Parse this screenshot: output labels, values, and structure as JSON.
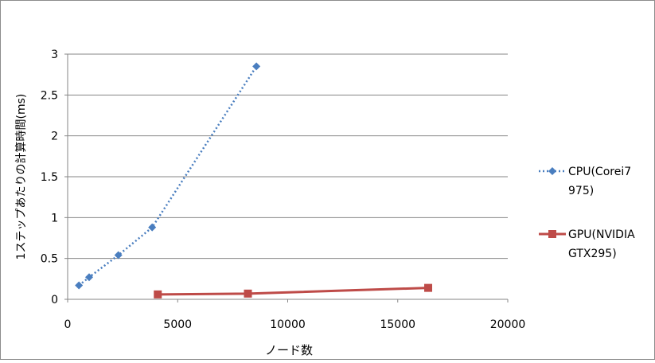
{
  "chart_data": {
    "type": "scatter",
    "xlabel": "ノード数",
    "ylabel": "1ステップあたりの計算時間(ms)",
    "xlim": [
      0,
      20000
    ],
    "ylim": [
      0,
      3
    ],
    "x_ticks": [
      "0",
      "5000",
      "10000",
      "15000",
      "20000"
    ],
    "y_ticks": [
      "0",
      "0.5",
      "1",
      "1.5",
      "2",
      "2.5",
      "3"
    ],
    "grid": "horizontal",
    "legend_position": "right",
    "series": [
      {
        "name": "CPU(Corei7 975)",
        "legend_lines": [
          "CPU(Corei7",
          "975)"
        ],
        "color": "#4a7ebf",
        "line_style": "dotted",
        "marker": "diamond",
        "x": [
          512,
          976,
          2304,
          3840,
          8576
        ],
        "y": [
          0.17,
          0.27,
          0.54,
          0.88,
          2.85
        ]
      },
      {
        "name": "GPU(NVIDIA GTX295)",
        "legend_lines": [
          "GPU(NVIDIA",
          "GTX295)"
        ],
        "color": "#be4b48",
        "line_style": "solid",
        "marker": "square",
        "x": [
          4096,
          8192,
          16384
        ],
        "y": [
          0.06,
          0.07,
          0.14
        ]
      }
    ]
  }
}
